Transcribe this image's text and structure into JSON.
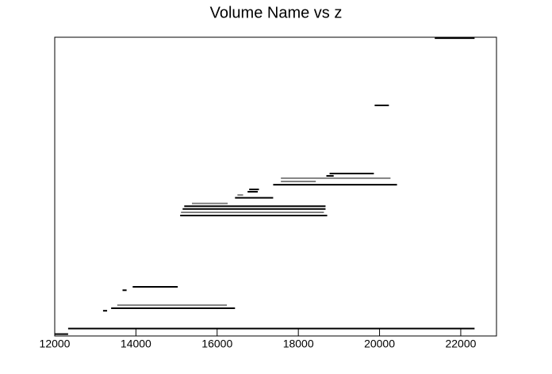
{
  "chart_data": {
    "type": "segments",
    "title": "Volume Name vs z",
    "xlim": [
      12000,
      22880
    ],
    "xticks": [
      12000,
      14000,
      16000,
      18000,
      20000,
      22000
    ],
    "ylim": [
      0,
      32
    ],
    "segments": [
      {
        "y": 0.2,
        "x": [
          12000,
          12330
        ],
        "color": "#000000"
      },
      {
        "y": 0.8,
        "x": [
          12330,
          22340
        ],
        "color": "#000000"
      },
      {
        "y": 2.7,
        "x": [
          13190,
          13290
        ],
        "color": "#000000"
      },
      {
        "y": 2.97,
        "x": [
          13390,
          16440
        ],
        "color": "#000000"
      },
      {
        "y": 3.3,
        "x": [
          13540,
          16240
        ],
        "color": "#808080"
      },
      {
        "y": 4.9,
        "x": [
          13670,
          13770
        ],
        "color": "#000000"
      },
      {
        "y": 5.26,
        "x": [
          13920,
          15030
        ],
        "color": "#000000"
      },
      {
        "y": 12.9,
        "x": [
          15090,
          18710
        ],
        "color": "#000000"
      },
      {
        "y": 13.24,
        "x": [
          15110,
          18630
        ],
        "color": "#808080"
      },
      {
        "y": 13.6,
        "x": [
          15150,
          18670
        ],
        "color": "#000000"
      },
      {
        "y": 13.9,
        "x": [
          15190,
          18670
        ],
        "color": "#000000"
      },
      {
        "y": 14.2,
        "x": [
          15380,
          16260
        ],
        "color": "#808080"
      },
      {
        "y": 14.8,
        "x": [
          16440,
          17380
        ],
        "color": "#000000"
      },
      {
        "y": 15.1,
        "x": [
          16500,
          16640
        ],
        "color": "#808080"
      },
      {
        "y": 15.45,
        "x": [
          16750,
          17000
        ],
        "color": "#000000"
      },
      {
        "y": 15.7,
        "x": [
          16790,
          17030
        ],
        "color": "#000000"
      },
      {
        "y": 16.2,
        "x": [
          17380,
          20430
        ],
        "color": "#000000"
      },
      {
        "y": 16.55,
        "x": [
          17570,
          18430
        ],
        "color": "#808080"
      },
      {
        "y": 16.9,
        "x": [
          17570,
          20270
        ],
        "color": "#808080"
      },
      {
        "y": 17.15,
        "x": [
          18690,
          18870
        ],
        "color": "#000000"
      },
      {
        "y": 17.4,
        "x": [
          18770,
          19860
        ],
        "color": "#000000"
      },
      {
        "y": 24.7,
        "x": [
          19880,
          20230
        ],
        "color": "#000000"
      },
      {
        "y": 31.9,
        "x": [
          21360,
          22340
        ],
        "color": "#000000"
      }
    ]
  }
}
